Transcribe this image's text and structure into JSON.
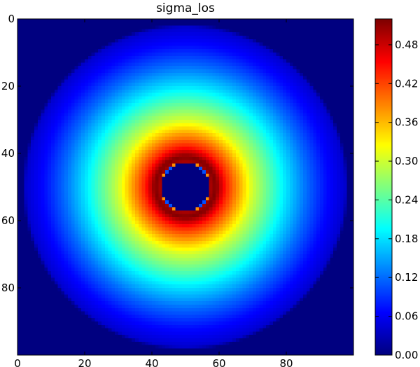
{
  "chart_data": {
    "type": "heatmap",
    "title": "sigma_los",
    "xlabel": "",
    "ylabel": "",
    "colormap": "jet",
    "grid": false,
    "shape": [
      100,
      100
    ],
    "xlim": [
      0,
      100
    ],
    "ylim": [
      100,
      0
    ],
    "x_ticks": [
      0,
      20,
      40,
      60,
      80
    ],
    "y_ticks": [
      0,
      20,
      40,
      60,
      80
    ],
    "colorbar": {
      "range": [
        0.0,
        0.52
      ],
      "ticks": [
        "0.00",
        "0.06",
        "0.12",
        "0.18",
        "0.24",
        "0.30",
        "0.36",
        "0.42",
        "0.48"
      ]
    },
    "pattern": {
      "description_of_values": "radially symmetric annulus",
      "center": [
        49.5,
        49.5
      ],
      "radial_profile": [
        {
          "r": 0,
          "value": 0.0
        },
        {
          "r": 7,
          "value": 0.0
        },
        {
          "r": 7.5,
          "value": 0.5
        },
        {
          "r": 9,
          "value": 0.52
        },
        {
          "r": 12,
          "value": 0.44
        },
        {
          "r": 16,
          "value": 0.37
        },
        {
          "r": 20,
          "value": 0.3
        },
        {
          "r": 25,
          "value": 0.24
        },
        {
          "r": 30,
          "value": 0.18
        },
        {
          "r": 36,
          "value": 0.12
        },
        {
          "r": 42,
          "value": 0.07
        },
        {
          "r": 47.5,
          "value": 0.04
        },
        {
          "r": 48.5,
          "value": 0.0
        },
        {
          "r": 200,
          "value": 0.0
        }
      ]
    }
  }
}
